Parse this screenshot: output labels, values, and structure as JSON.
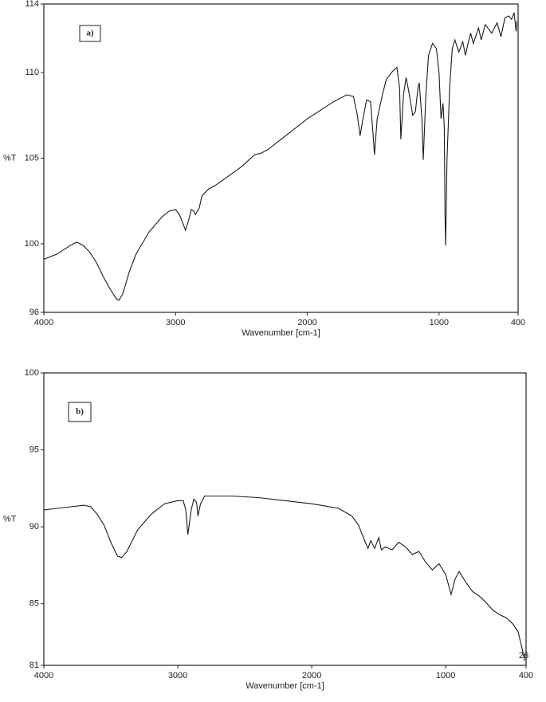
{
  "chart_data": [
    {
      "type": "line",
      "panel_label": "a)",
      "xlabel": "Wavenumber [cm-1]",
      "ylabel": "%T",
      "xlim": [
        4000,
        400
      ],
      "ylim": [
        96,
        114
      ],
      "xticks": [
        4000,
        3000,
        2000,
        1000,
        400
      ],
      "yticks": [
        96,
        100,
        105,
        110,
        114
      ],
      "x": [
        4000,
        3900,
        3800,
        3750,
        3700,
        3650,
        3600,
        3550,
        3500,
        3450,
        3430,
        3400,
        3350,
        3300,
        3200,
        3100,
        3050,
        3000,
        2970,
        2925,
        2900,
        2880,
        2860,
        2850,
        2820,
        2800,
        2750,
        2700,
        2500,
        2400,
        2350,
        2300,
        2200,
        2000,
        1800,
        1700,
        1650,
        1620,
        1600,
        1580,
        1550,
        1520,
        1500,
        1490,
        1470,
        1430,
        1400,
        1350,
        1320,
        1300,
        1290,
        1270,
        1250,
        1230,
        1200,
        1180,
        1160,
        1150,
        1130,
        1120,
        1100,
        1080,
        1050,
        1020,
        1000,
        985,
        970,
        960,
        955,
        950,
        940,
        920,
        900,
        880,
        850,
        820,
        800,
        780,
        760,
        740,
        700,
        680,
        650,
        600,
        560,
        530,
        500,
        470,
        450,
        430,
        415,
        410
      ],
      "series": [
        {
          "color": "#1a1a1a",
          "values": [
            99.1,
            99.4,
            99.9,
            100.1,
            99.9,
            99.5,
            98.9,
            98.1,
            97.4,
            96.8,
            96.7,
            97.1,
            98.4,
            99.4,
            100.7,
            101.6,
            101.9,
            102.0,
            101.7,
            100.8,
            101.4,
            102.0,
            101.9,
            101.7,
            102.1,
            102.8,
            103.2,
            103.4,
            104.5,
            105.2,
            105.3,
            105.5,
            106.1,
            107.3,
            108.3,
            108.7,
            108.6,
            107.5,
            106.3,
            107.2,
            108.4,
            108.3,
            106.3,
            105.2,
            107.3,
            108.7,
            109.6,
            110.1,
            110.3,
            109.1,
            106.1,
            108.7,
            109.7,
            108.9,
            107.5,
            107.7,
            109.1,
            109.4,
            107.3,
            104.9,
            108.7,
            111.0,
            111.7,
            111.4,
            110.0,
            107.3,
            108.2,
            106.8,
            101.7,
            99.9,
            104.9,
            109.1,
            111.4,
            111.9,
            111.2,
            111.8,
            111.0,
            111.7,
            112.3,
            111.7,
            112.6,
            111.9,
            112.8,
            112.3,
            112.9,
            112.1,
            113.2,
            113.3,
            113.1,
            113.5,
            112.4,
            113.0
          ]
        }
      ]
    },
    {
      "type": "line",
      "panel_label": "b)",
      "annotation": "26",
      "xlabel": "Wavenumber [cm-1]",
      "ylabel": "%T",
      "xlim": [
        4000,
        400
      ],
      "ylim": [
        81,
        100
      ],
      "xticks": [
        4000,
        3000,
        2000,
        1000,
        400
      ],
      "yticks": [
        81,
        85,
        90,
        95,
        100
      ],
      "x": [
        4000,
        3900,
        3800,
        3700,
        3650,
        3600,
        3550,
        3500,
        3450,
        3420,
        3380,
        3300,
        3200,
        3100,
        3000,
        2960,
        2940,
        2925,
        2900,
        2880,
        2860,
        2850,
        2830,
        2800,
        2600,
        2400,
        2200,
        2000,
        1800,
        1700,
        1650,
        1600,
        1580,
        1560,
        1530,
        1500,
        1480,
        1450,
        1400,
        1350,
        1300,
        1250,
        1200,
        1150,
        1100,
        1050,
        1000,
        960,
        930,
        900,
        850,
        800,
        750,
        700,
        650,
        600,
        550,
        500,
        460,
        430,
        410
      ],
      "series": [
        {
          "color": "#1a1a1a",
          "values": [
            91.1,
            91.2,
            91.3,
            91.4,
            91.3,
            90.8,
            90.1,
            89.0,
            88.1,
            88.0,
            88.4,
            89.8,
            90.8,
            91.5,
            91.7,
            91.7,
            91.1,
            89.5,
            91.1,
            91.8,
            91.6,
            90.7,
            91.5,
            92.0,
            92.0,
            91.9,
            91.7,
            91.5,
            91.2,
            90.7,
            90.1,
            89.0,
            88.6,
            89.1,
            88.6,
            89.3,
            88.5,
            88.7,
            88.5,
            89.0,
            88.7,
            88.2,
            88.4,
            87.7,
            87.2,
            87.6,
            86.9,
            85.6,
            86.6,
            87.1,
            86.4,
            85.8,
            85.5,
            85.1,
            84.6,
            84.3,
            84.1,
            83.7,
            83.2,
            82.1,
            81.3
          ]
        }
      ]
    }
  ]
}
